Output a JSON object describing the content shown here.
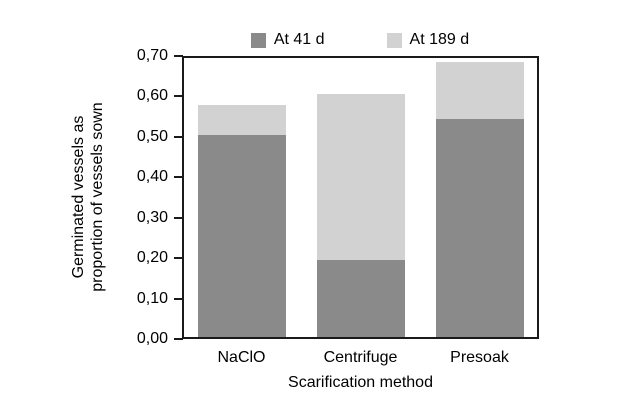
{
  "colors": {
    "series_at_41_d": "#8a8a8a",
    "series_at_189_d": "#d2d2d2",
    "axis": "#1a1a1a",
    "text": "#000000",
    "background": "#ffffff"
  },
  "chart_data": {
    "type": "bar",
    "stacked": true,
    "title": "",
    "categories": [
      "NaClO",
      "Centrifuge",
      "Presoak"
    ],
    "series": [
      {
        "name": "At 41 d",
        "color": "#8a8a8a",
        "values": [
          0.5,
          0.19,
          0.54
        ]
      },
      {
        "name": "At 189 d",
        "color": "#d2d2d2",
        "values": [
          0.075,
          0.41,
          0.14
        ]
      }
    ],
    "stack_totals": [
      0.575,
      0.6,
      0.68
    ],
    "xlabel": "Scarification method",
    "ylabel_line1": "Germinated vessels as",
    "ylabel_line2": "proportion of vessels sown",
    "ylim": [
      0,
      0.7
    ],
    "ytick_step": 0.1,
    "yticks": [
      "0,00",
      "0,10",
      "0,20",
      "0,30",
      "0,40",
      "0,50",
      "0,60",
      "0,70"
    ],
    "decimal_separator": ",",
    "grid": false,
    "legend_position": "top"
  }
}
